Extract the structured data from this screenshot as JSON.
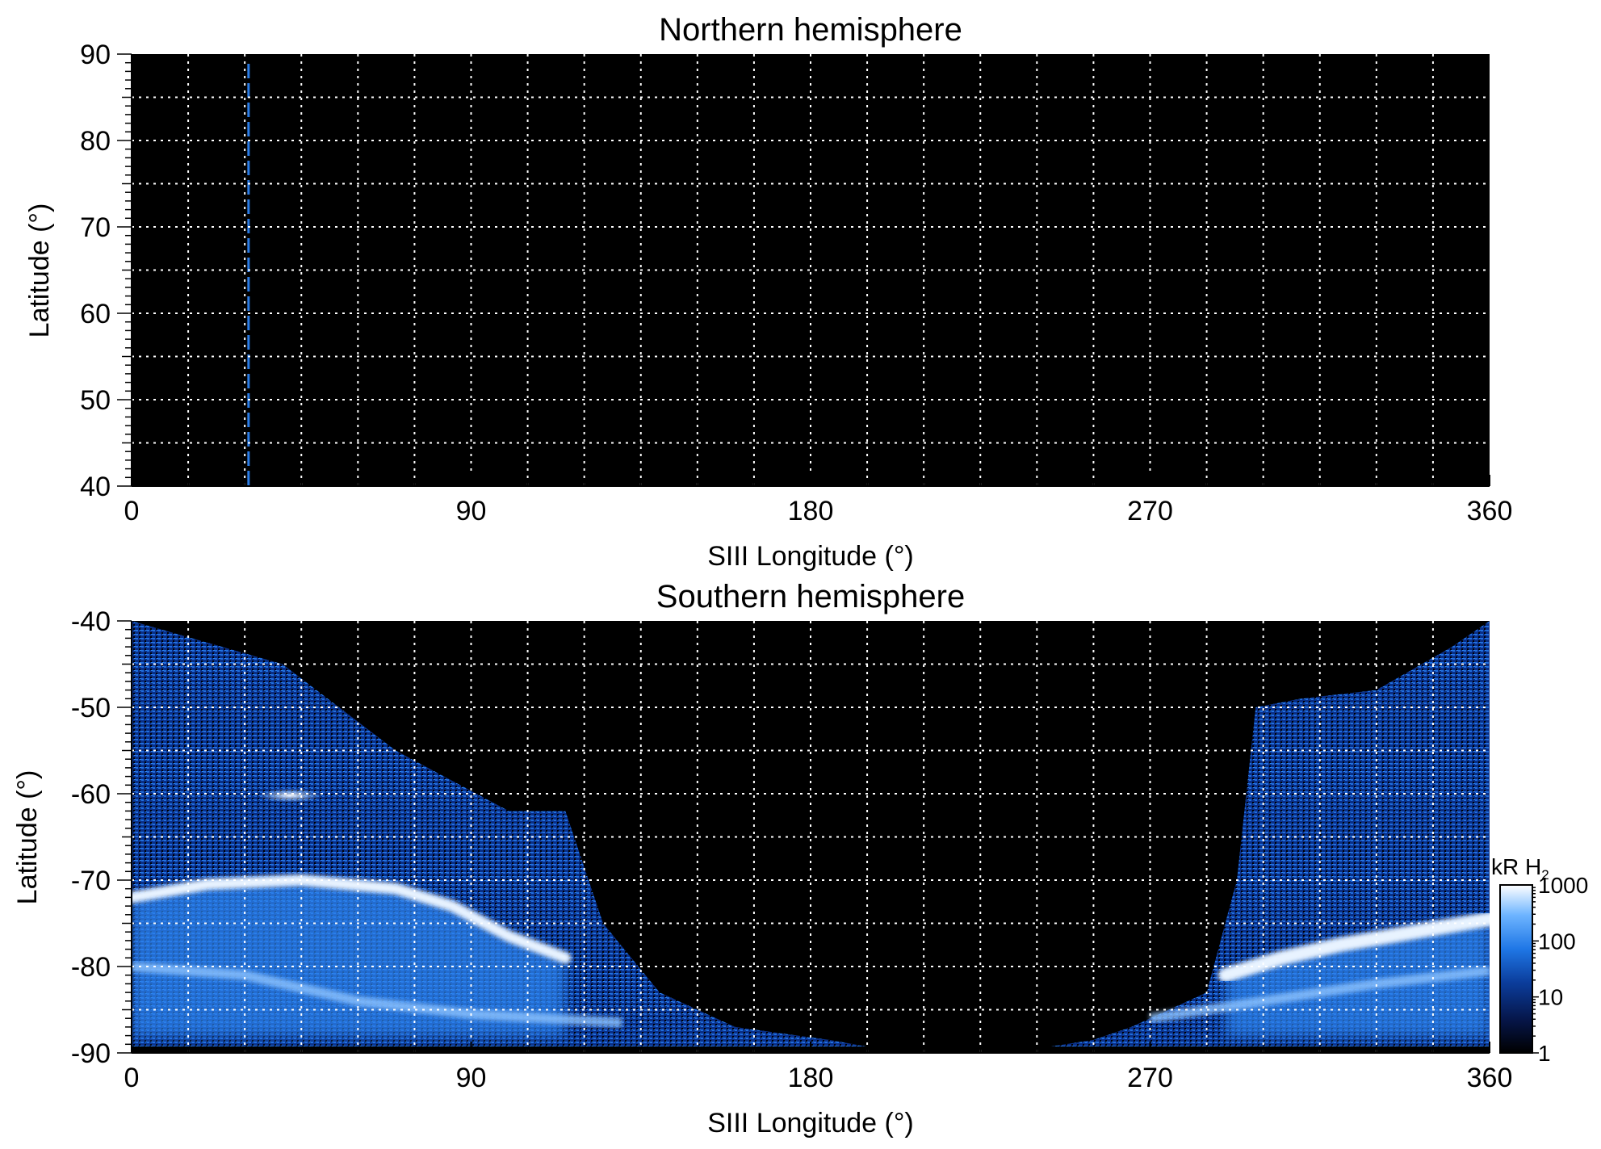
{
  "chart_data": [
    {
      "type": "heatmap",
      "title": "Northern hemisphere",
      "xlabel": "SIII Longitude (°)",
      "ylabel": "Latitude (°)",
      "xlim": [
        0,
        360
      ],
      "ylim": [
        40,
        90
      ],
      "xticks": [
        "0",
        "90",
        "180",
        "270",
        "360"
      ],
      "yticks": [
        "40",
        "50",
        "60",
        "70",
        "80",
        "90"
      ],
      "grid": "dotted, every 15° longitude and 5° latitude",
      "background": "#000000",
      "marker_line": {
        "longitude": 31,
        "style": "dashed",
        "color": "#2a7be4"
      },
      "emission": "none"
    },
    {
      "type": "heatmap",
      "title": "Southern hemisphere",
      "xlabel": "SIII Longitude (°)",
      "ylabel": "Latitude (°)",
      "xlim": [
        0,
        360
      ],
      "ylim": [
        -90,
        -40
      ],
      "xticks": [
        "0",
        "90",
        "180",
        "270",
        "360"
      ],
      "yticks": [
        "-90",
        "-80",
        "-70",
        "-60",
        "-50",
        "-40"
      ],
      "grid": "dotted, every 15° longitude and 5° latitude",
      "background": "#000000",
      "main_oval": [
        [
          0,
          -72
        ],
        [
          20,
          -70.5
        ],
        [
          45,
          -70
        ],
        [
          70,
          -71
        ],
        [
          85,
          -73
        ],
        [
          100,
          -76.5
        ],
        [
          115,
          -79
        ],
        [
          290,
          -81
        ],
        [
          305,
          -79
        ],
        [
          320,
          -77.5
        ],
        [
          340,
          -76
        ],
        [
          360,
          -74.5
        ]
      ],
      "coverage_edge": [
        [
          0,
          -40
        ],
        [
          40,
          -45
        ],
        [
          70,
          -55
        ],
        [
          100,
          -62
        ],
        [
          115,
          -62
        ],
        [
          125,
          -75
        ],
        [
          140,
          -83
        ],
        [
          160,
          -87
        ],
        [
          185,
          -88.5
        ],
        [
          198,
          -89.5
        ],
        [
          240,
          -89.5
        ],
        [
          255,
          -88.5
        ],
        [
          265,
          -87
        ],
        [
          285,
          -83
        ],
        [
          293,
          -70
        ],
        [
          298,
          -50
        ],
        [
          310,
          -49
        ],
        [
          330,
          -48
        ],
        [
          350,
          -43
        ],
        [
          360,
          -40
        ]
      ],
      "bright_spot": {
        "longitude": 42,
        "latitude": -60.2
      },
      "colorbar": {
        "label": "kR H",
        "label_subscript": "2",
        "scale": "log",
        "range": [
          1,
          1000
        ],
        "ticks": [
          "1000",
          "100",
          "10",
          "1"
        ],
        "colors": [
          "#000000",
          "#06164a",
          "#0b3d9c",
          "#1f77e6",
          "#6db4ff",
          "#ffffff"
        ]
      }
    }
  ]
}
